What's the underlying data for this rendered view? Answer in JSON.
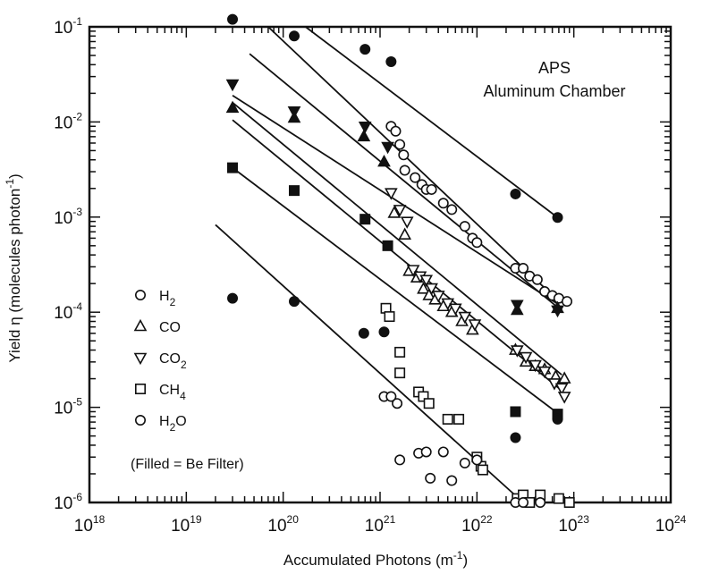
{
  "chart_data": {
    "type": "scatter",
    "title_lines": [
      "APS",
      "Aluminum Chamber"
    ],
    "xlabel": "Accumulated Photons (m",
    "xlabel_sup": "-1",
    "xlabel_end": ")",
    "ylabel": "Yield η (molecules photon",
    "ylabel_sup": "-1",
    "ylabel_end": ")",
    "x_scale": "log",
    "y_scale": "log",
    "xlim": [
      1e+18,
      1e+24
    ],
    "ylim": [
      1e-06,
      0.1
    ],
    "grid": false,
    "legend_position": "bottom-left",
    "x_ticks": [
      {
        "base": "10",
        "exp": "18",
        "value": 1e+18
      },
      {
        "base": "10",
        "exp": "19",
        "value": 1e+19
      },
      {
        "base": "10",
        "exp": "20",
        "value": 1e+20
      },
      {
        "base": "10",
        "exp": "21",
        "value": 1e+21
      },
      {
        "base": "10",
        "exp": "22",
        "value": 1e+22
      },
      {
        "base": "10",
        "exp": "23",
        "value": 1e+23
      },
      {
        "base": "10",
        "exp": "24",
        "value": 1e+24
      }
    ],
    "y_ticks": [
      {
        "base": "10",
        "exp": "-6",
        "value": 1e-06
      },
      {
        "base": "10",
        "exp": "-5",
        "value": 1e-05
      },
      {
        "base": "10",
        "exp": "-4",
        "value": 0.0001
      },
      {
        "base": "10",
        "exp": "-3",
        "value": 0.001
      },
      {
        "base": "10",
        "exp": "-2",
        "value": 0.01
      },
      {
        "base": "10",
        "exp": "-1",
        "value": 0.1
      }
    ],
    "legend": [
      {
        "symbol": "circle",
        "text": "H",
        "sub": "2"
      },
      {
        "symbol": "triangle-up",
        "text": "CO",
        "sub": ""
      },
      {
        "symbol": "triangle-down",
        "text": "CO",
        "sub": "2"
      },
      {
        "symbol": "square",
        "text": "CH",
        "sub": "4"
      },
      {
        "symbol": "circle",
        "text": "H",
        "sub": "2",
        "text_end": "O"
      }
    ],
    "legend_note": "(Filled = Be Filter)",
    "series": [
      {
        "symbol": "circle",
        "filled": [
          [
            3e+19,
            0.12
          ],
          [
            1.3e+20,
            0.08
          ],
          [
            7e+20,
            0.058
          ],
          [
            1.3e+21,
            0.043
          ],
          [
            2.5e+22,
            0.00175
          ],
          [
            6.8e+22,
            0.00099
          ]
        ],
        "open": [
          [
            1.3e+21,
            0.009
          ],
          [
            1.45e+21,
            0.008
          ],
          [
            1.6e+21,
            0.0058
          ],
          [
            1.75e+21,
            0.0045
          ],
          [
            1.8e+21,
            0.0031
          ],
          [
            2.3e+21,
            0.0026
          ],
          [
            2.7e+21,
            0.0022
          ],
          [
            3e+21,
            0.00195
          ],
          [
            3.4e+21,
            0.00195
          ],
          [
            4.5e+21,
            0.0014
          ],
          [
            5.5e+21,
            0.0012
          ],
          [
            7.5e+21,
            0.0008
          ],
          [
            9e+21,
            0.0006
          ],
          [
            1e+22,
            0.00054
          ],
          [
            2.5e+22,
            0.00029
          ],
          [
            3e+22,
            0.00029
          ],
          [
            3.5e+22,
            0.00024
          ],
          [
            4.2e+22,
            0.00022
          ],
          [
            5e+22,
            0.000165
          ],
          [
            6e+22,
            0.00015
          ],
          [
            7e+22,
            0.00014
          ],
          [
            8.5e+22,
            0.00013
          ]
        ]
      },
      {
        "symbol": "triangle-up",
        "filled": [
          [
            3e+19,
            0.014
          ],
          [
            1.3e+20,
            0.011
          ],
          [
            6.8e+20,
            0.007
          ],
          [
            1.1e+21,
            0.0038
          ],
          [
            2.6e+22,
            0.000105
          ],
          [
            6.8e+22,
            0.00011
          ]
        ],
        "open": [
          [
            1.4e+21,
            0.0011
          ],
          [
            1.8e+21,
            0.00065
          ],
          [
            2e+21,
            0.00027
          ],
          [
            2.4e+21,
            0.00023
          ],
          [
            2.8e+21,
            0.000175
          ],
          [
            3.2e+21,
            0.00015
          ],
          [
            3.7e+21,
            0.000135
          ],
          [
            4.5e+21,
            0.000115
          ],
          [
            5.5e+21,
            0.0001
          ],
          [
            7e+21,
            8e-05
          ],
          [
            9e+21,
            6.5e-05
          ],
          [
            2.5e+22,
            4e-05
          ],
          [
            3.2e+22,
            3e-05
          ],
          [
            4e+22,
            2.7e-05
          ],
          [
            5e+22,
            2.5e-05
          ],
          [
            6.5e+22,
            2.1e-05
          ],
          [
            8e+22,
            2e-05
          ]
        ]
      },
      {
        "symbol": "triangle-down",
        "filled": [
          [
            3e+19,
            0.025
          ],
          [
            1.3e+20,
            0.013
          ],
          [
            7e+20,
            0.009
          ],
          [
            1.2e+21,
            0.0055
          ],
          [
            2.6e+22,
            0.00012
          ],
          [
            6.8e+22,
            0.000105
          ]
        ],
        "open": [
          [
            1.3e+21,
            0.0018
          ],
          [
            1.6e+21,
            0.0012
          ],
          [
            1.9e+21,
            0.0009
          ],
          [
            2.2e+21,
            0.00028
          ],
          [
            2.6e+21,
            0.00024
          ],
          [
            3e+21,
            0.00022
          ],
          [
            3.4e+21,
            0.00018
          ],
          [
            4e+21,
            0.00015
          ],
          [
            5e+21,
            0.000125
          ],
          [
            6e+21,
            0.00011
          ],
          [
            7.5e+21,
            9e-05
          ],
          [
            9.5e+21,
            7.5e-05
          ],
          [
            2.6e+22,
            4e-05
          ],
          [
            3.2e+22,
            3.4e-05
          ],
          [
            4e+22,
            2.8e-05
          ],
          [
            5e+22,
            2.4e-05
          ],
          [
            6.3e+22,
            1.8e-05
          ],
          [
            7.5e+22,
            1.6e-05
          ],
          [
            8e+22,
            1.3e-05
          ]
        ]
      },
      {
        "symbol": "square",
        "filled": [
          [
            3e+19,
            0.0033
          ],
          [
            1.3e+20,
            0.0019
          ],
          [
            7e+20,
            0.00095
          ],
          [
            1.2e+21,
            0.0005
          ],
          [
            2.5e+22,
            9e-06
          ],
          [
            6.8e+22,
            8.5e-06
          ]
        ],
        "open": [
          [
            1.15e+21,
            0.00011
          ],
          [
            1.25e+21,
            9e-05
          ],
          [
            1.6e+21,
            3.8e-05
          ],
          [
            1.6e+21,
            2.3e-05
          ],
          [
            2.5e+21,
            1.45e-05
          ],
          [
            2.8e+21,
            1.3e-05
          ],
          [
            3.2e+21,
            1.1e-05
          ],
          [
            5e+21,
            7.5e-06
          ],
          [
            6.5e+21,
            7.5e-06
          ],
          [
            1e+22,
            3e-06
          ],
          [
            1.1e+22,
            2.4e-06
          ],
          [
            1.15e+22,
            2.2e-06
          ],
          [
            2.6e+22,
            1.1e-06
          ],
          [
            3e+22,
            1.2e-06
          ],
          [
            3.5e+22,
            1e-06
          ],
          [
            4.5e+22,
            1.2e-06
          ],
          [
            7e+22,
            1.1e-06
          ],
          [
            9e+22,
            1e-06
          ]
        ]
      },
      {
        "symbol": "circle",
        "filled": [
          [
            3e+19,
            0.00014
          ],
          [
            1.3e+20,
            0.00013
          ],
          [
            6.8e+20,
            6e-05
          ],
          [
            1.1e+21,
            6.2e-05
          ],
          [
            2.5e+22,
            4.8e-06
          ],
          [
            6.8e+22,
            7.5e-06
          ]
        ],
        "open": [
          [
            1.1e+21,
            1.3e-05
          ],
          [
            1.3e+21,
            1.3e-05
          ],
          [
            1.5e+21,
            1.1e-05
          ],
          [
            1.6e+21,
            2.8e-06
          ],
          [
            2.5e+21,
            3.3e-06
          ],
          [
            3e+21,
            3.4e-06
          ],
          [
            3.3e+21,
            1.8e-06
          ],
          [
            4.5e+21,
            3.4e-06
          ],
          [
            5.5e+21,
            1.7e-06
          ],
          [
            7.5e+21,
            2.6e-06
          ],
          [
            1e+22,
            2.8e-06
          ],
          [
            2.5e+22,
            1e-06
          ],
          [
            3e+22,
            1e-06
          ],
          [
            4.5e+22,
            1e-06
          ]
        ]
      }
    ],
    "fit_lines": [
      [
        [
          1.7e+20,
          0.1
        ],
        [
          6.8e+22,
          0.00099
        ]
      ],
      [
        [
          7e+19,
          0.1
        ],
        [
          7e+22,
          0.00013
        ]
      ],
      [
        [
          4.5e+19,
          0.052
        ],
        [
          7e+22,
          0.00011
        ]
      ],
      [
        [
          3e+19,
          0.019
        ],
        [
          7e+22,
          0.00012
        ]
      ],
      [
        [
          3e+19,
          0.016
        ],
        [
          7.5e+22,
          2.2e-05
        ]
      ],
      [
        [
          3e+19,
          0.0105
        ],
        [
          7.5e+22,
          1.5e-05
        ]
      ],
      [
        [
          3e+19,
          0.0033
        ],
        [
          7e+22,
          8.5e-06
        ]
      ],
      [
        [
          2e+19,
          0.00083
        ],
        [
          3e+22,
          1e-06
        ]
      ]
    ]
  }
}
